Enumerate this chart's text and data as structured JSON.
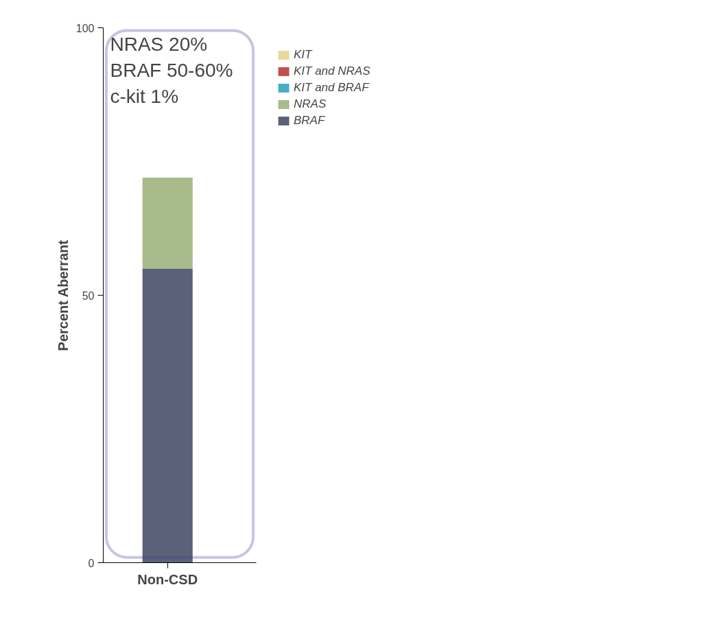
{
  "chart_data": {
    "type": "bar",
    "stacked": true,
    "ylabel": "Percent Aberrant",
    "categories": [
      "Non-CSD"
    ],
    "series": [
      {
        "name": "BRAF",
        "color": "#5a6178",
        "values": [
          55
        ]
      },
      {
        "name": "NRAS",
        "color": "#a8bb8a",
        "values": [
          17
        ]
      },
      {
        "name": "KIT and BRAF",
        "color": "#4bacc6",
        "values": [
          0
        ]
      },
      {
        "name": "KIT and NRAS",
        "color": "#c0504d",
        "values": [
          0
        ]
      },
      {
        "name": "KIT",
        "color": "#e8d89a",
        "values": [
          0
        ]
      }
    ],
    "ylim": [
      0,
      100
    ],
    "yticks": [
      0,
      50,
      100
    ],
    "grid": false,
    "legend": "top right",
    "annotations": [
      "NRAS 20%",
      "BRAF 50-60%",
      "c-kit 1%"
    ]
  }
}
